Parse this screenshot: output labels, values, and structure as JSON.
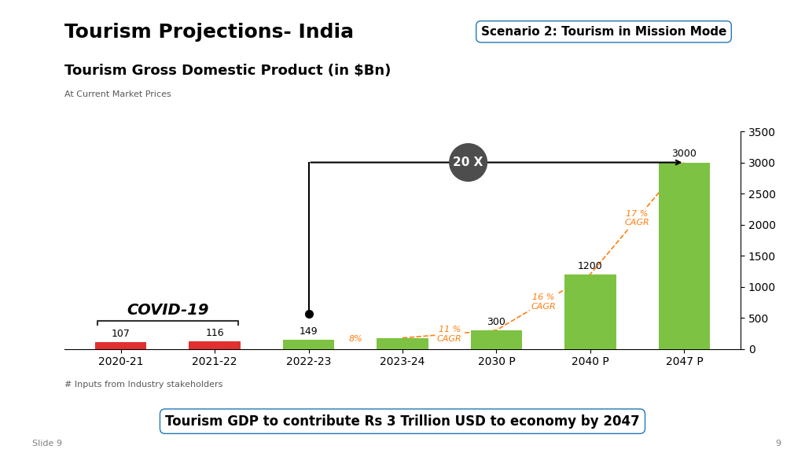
{
  "chart_data": {
    "type": "bar",
    "title": "Tourism Projections- India",
    "subtitle": "Tourism Gross Domestic Product (in $Bn)",
    "note": "At Current Market Prices",
    "categories": [
      "2020-21",
      "2021-22",
      "2022-23",
      "2023-24",
      "2030 P",
      "2040 P",
      "2047 P"
    ],
    "values": [
      107,
      116,
      149,
      175,
      300,
      1200,
      3000
    ],
    "colors": [
      "#e03030",
      "#e03030",
      "#7dc242",
      "#7dc242",
      "#7dc242",
      "#7dc242",
      "#7dc242"
    ],
    "data_labels": true,
    "value_labels": [
      "107",
      "116",
      "149",
      null,
      "300",
      "1200",
      "3000"
    ],
    "ylim": [
      0,
      3500
    ],
    "yticks": [
      0,
      500,
      1000,
      1500,
      2000,
      2500,
      3000,
      3500
    ],
    "grid": false,
    "annotations": {
      "cagr": [
        "8%",
        "11 %\nCAGR",
        "16 %\nCAGR",
        "17 %\nCAGR"
      ],
      "covid": "COVID-19",
      "multiple": "20 X",
      "scenario": "Scenario 2: Tourism in Mission Mode",
      "footer": "Tourism GDP to contribute Rs 3 Trillion USD to economy by 2047",
      "footnote": "# Inputs from Industry stakeholders",
      "slide_label": "Slide 9",
      "page_number": "9"
    }
  }
}
